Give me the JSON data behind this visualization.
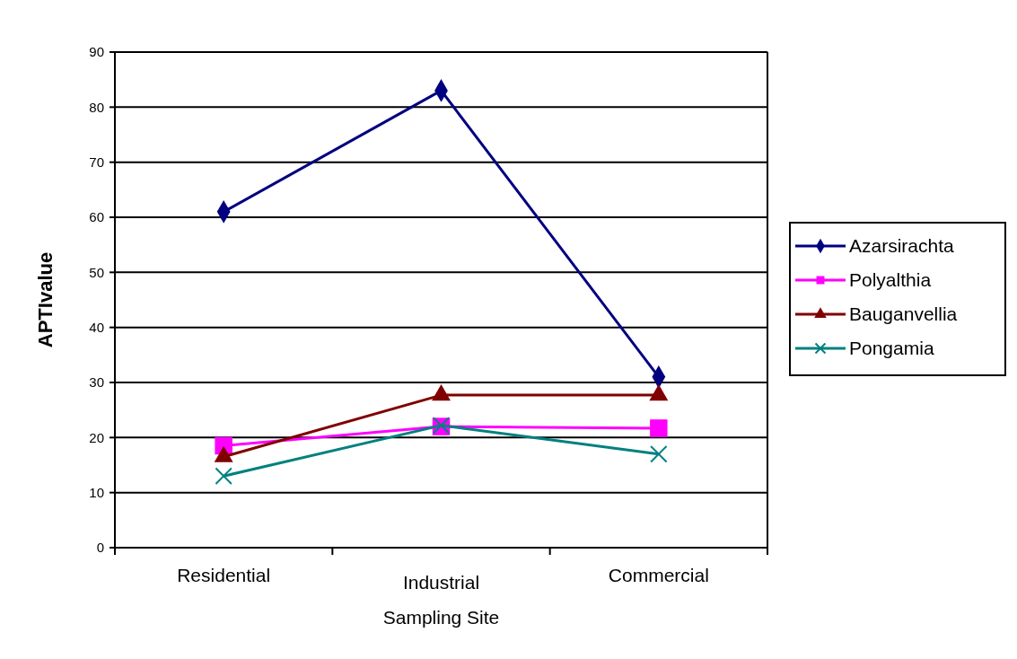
{
  "chart_data": {
    "type": "line",
    "xlabel": "Sampling Site",
    "ylabel": "APTIvalue",
    "categories": [
      "Residential",
      "Industrial",
      "Commercial"
    ],
    "series": [
      {
        "name": "Azarsirachta",
        "color": "#000080",
        "marker": "diamond",
        "values": [
          61,
          83,
          31
        ]
      },
      {
        "name": "Polyalthia",
        "color": "#ff00ff",
        "marker": "square",
        "values": [
          18.5,
          22,
          21.7
        ]
      },
      {
        "name": "Bauganvellia",
        "color": "#800000",
        "marker": "triangle",
        "values": [
          16.5,
          27.7,
          27.7
        ]
      },
      {
        "name": "Pongamia",
        "color": "#008080",
        "marker": "cross",
        "values": [
          13,
          22.2,
          17
        ]
      }
    ],
    "ylim": [
      0,
      90
    ],
    "yticks": [
      0,
      10,
      20,
      30,
      40,
      50,
      60,
      70,
      80,
      90
    ],
    "grid": "y",
    "legend": "right"
  }
}
